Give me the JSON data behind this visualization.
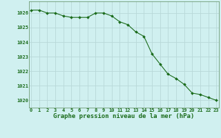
{
  "x": [
    0,
    1,
    2,
    3,
    4,
    5,
    6,
    7,
    8,
    9,
    10,
    11,
    12,
    13,
    14,
    15,
    16,
    17,
    18,
    19,
    20,
    21,
    22,
    23
  ],
  "y": [
    1026.2,
    1026.2,
    1026.0,
    1026.0,
    1025.8,
    1025.7,
    1025.7,
    1025.7,
    1026.0,
    1026.0,
    1025.8,
    1025.4,
    1025.2,
    1024.7,
    1024.4,
    1023.2,
    1022.5,
    1021.8,
    1021.5,
    1021.1,
    1020.5,
    1020.4,
    1020.2,
    1020.0
  ],
  "line_color": "#1a6b1a",
  "marker": "D",
  "marker_size": 2.0,
  "bg_color": "#d0f0f0",
  "grid_major_color": "#b8d8d8",
  "grid_minor_color": "#c8e4e4",
  "xlabel": "Graphe pression niveau de la mer (hPa)",
  "xlabel_color": "#1a6b1a",
  "tick_color": "#1a6b1a",
  "ylim": [
    1019.5,
    1026.8
  ],
  "xlim": [
    -0.3,
    23.3
  ],
  "yticks": [
    1020,
    1021,
    1022,
    1023,
    1024,
    1025,
    1026
  ],
  "xticks": [
    0,
    1,
    2,
    3,
    4,
    5,
    6,
    7,
    8,
    9,
    10,
    11,
    12,
    13,
    14,
    15,
    16,
    17,
    18,
    19,
    20,
    21,
    22,
    23
  ],
  "spine_color": "#5a8a5a",
  "tick_fontsize": 5.0,
  "xlabel_fontsize": 6.5
}
